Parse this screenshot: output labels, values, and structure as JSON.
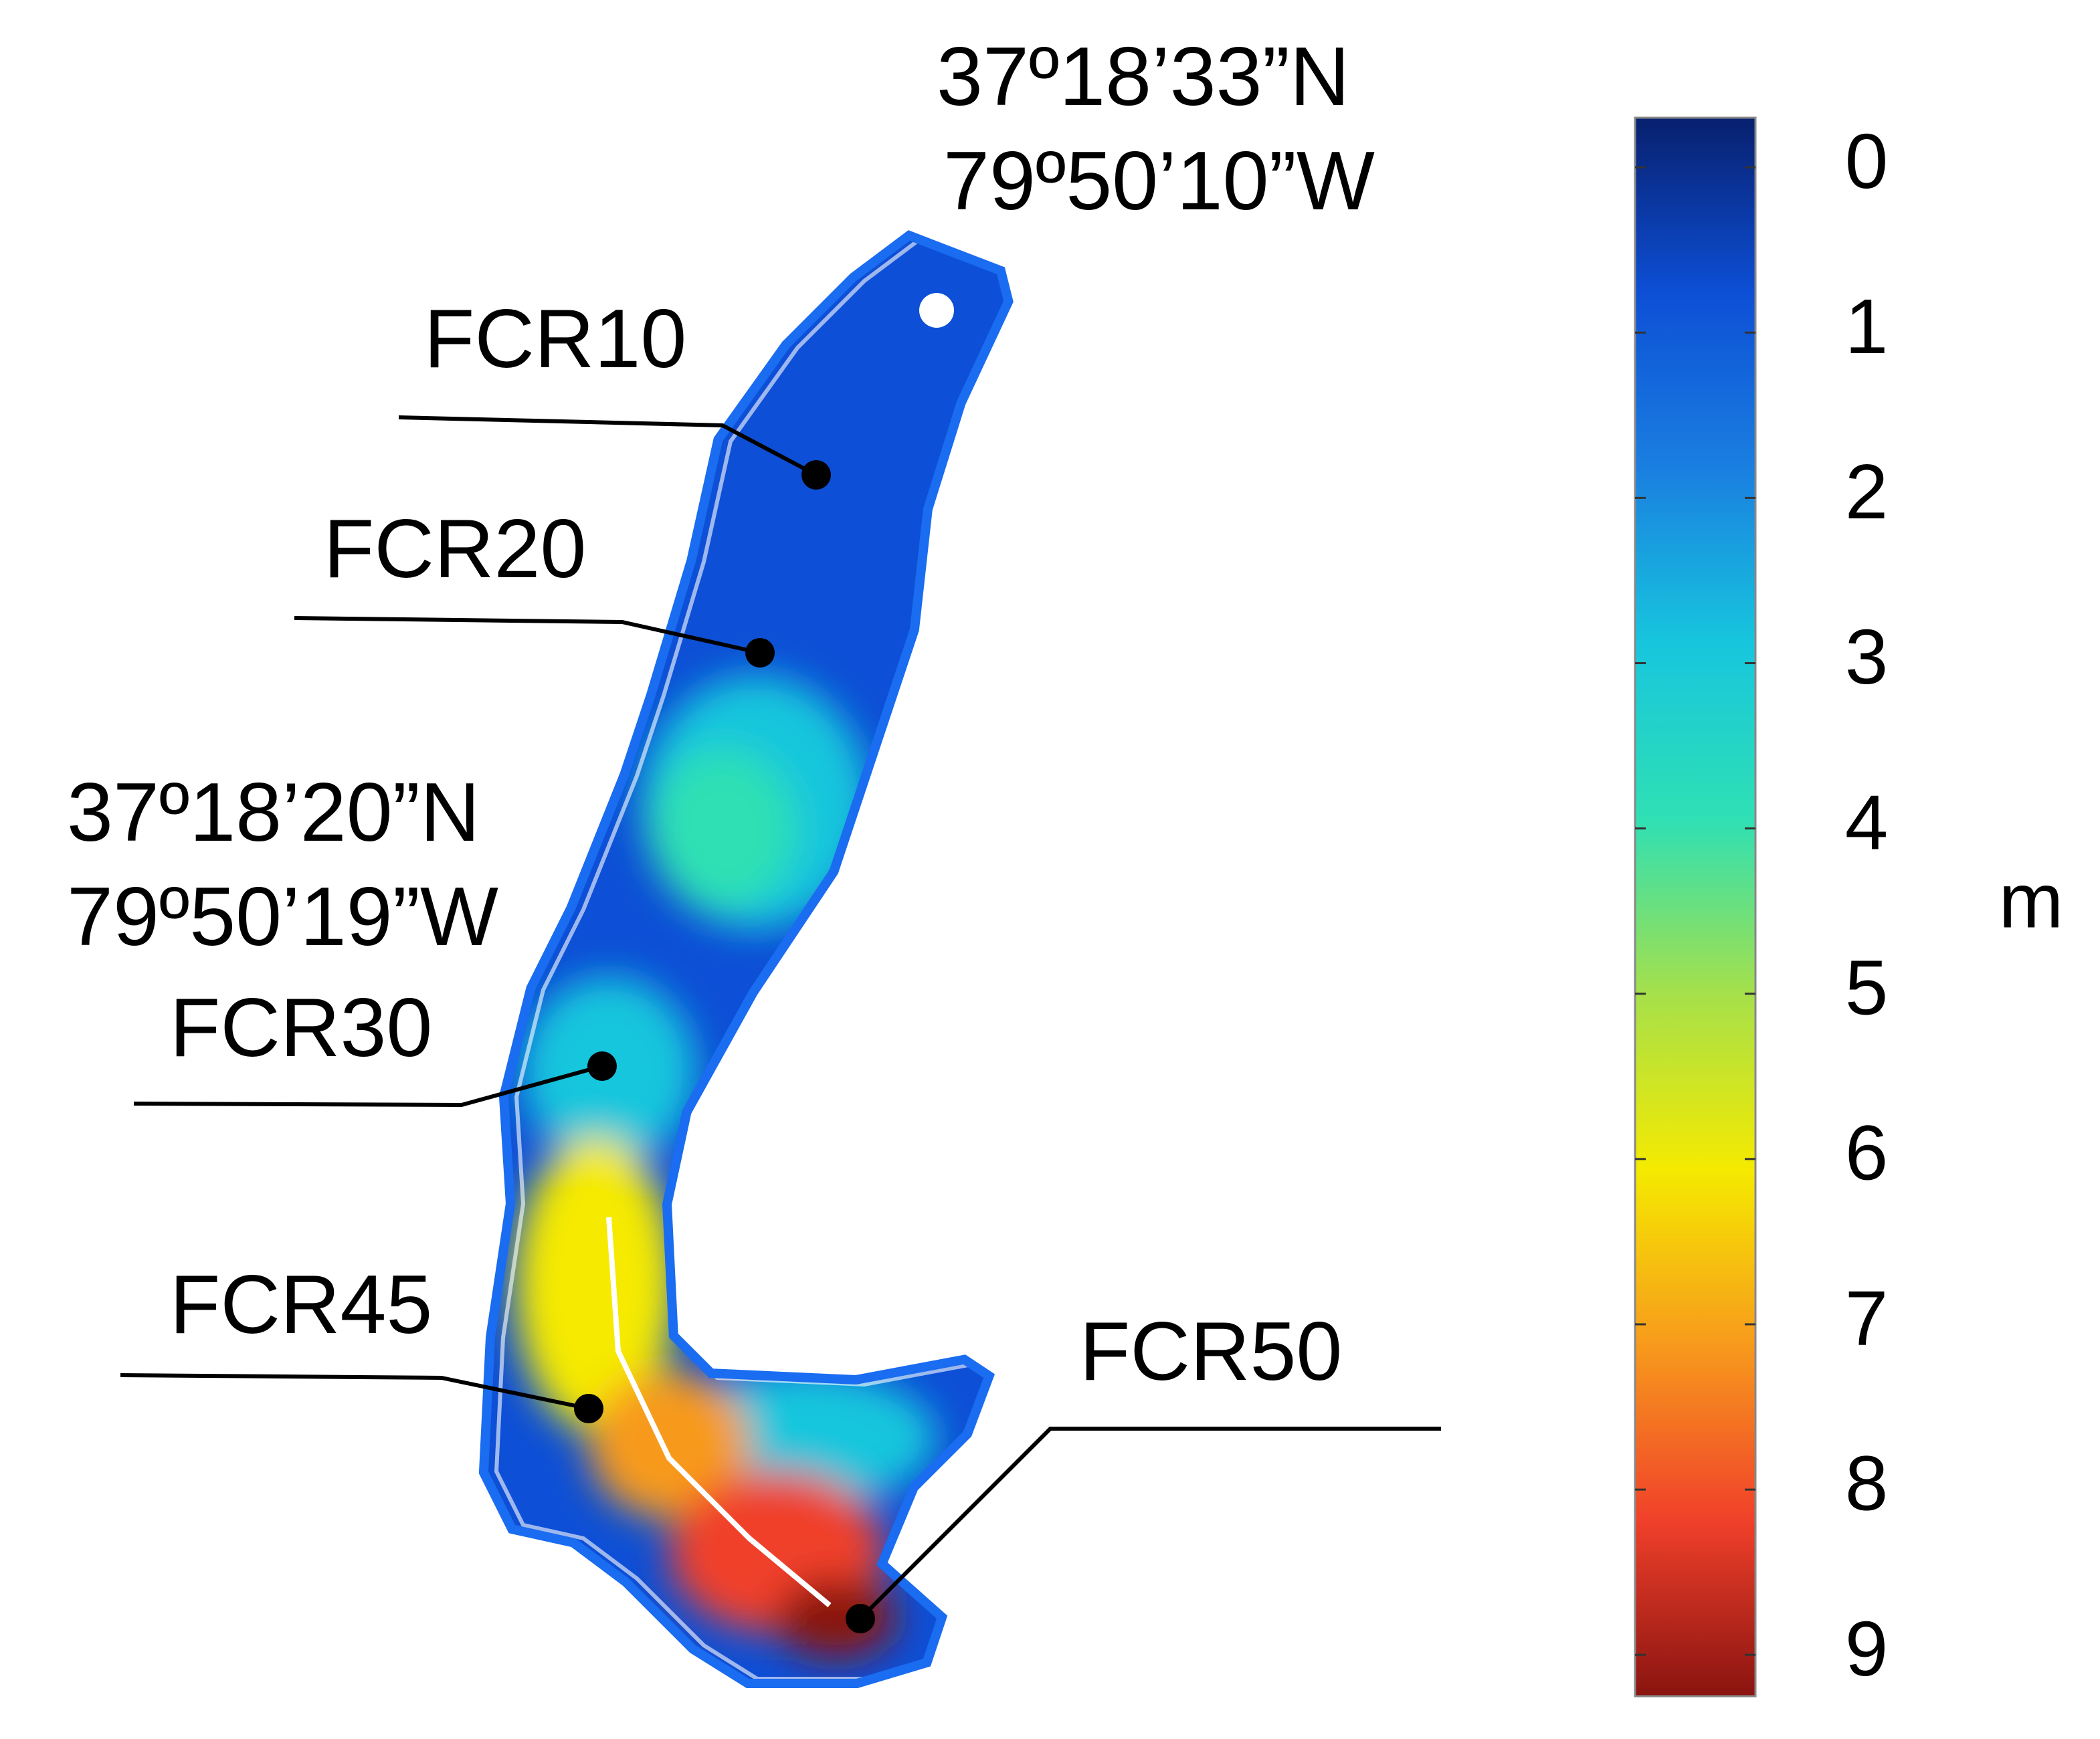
{
  "map": {
    "coordinates": [
      {
        "lat": "37º18’33”N",
        "lon": "79º50’10”W"
      },
      {
        "lat": "37º18’20”N",
        "lon": "79º50’19”W"
      }
    ],
    "sites": [
      {
        "label": "FCR10"
      },
      {
        "label": "FCR20"
      },
      {
        "label": "FCR30"
      },
      {
        "label": "FCR45"
      },
      {
        "label": "FCR50"
      }
    ],
    "colorbar": {
      "unit": "m",
      "lim": [
        -0.3,
        9.25
      ],
      "ticks": [
        0,
        1,
        2,
        3,
        4,
        5,
        6,
        7,
        8,
        9
      ],
      "colors": [
        "#08206e",
        "#0d4fd6",
        "#1a7fe0",
        "#17c6dd",
        "#2fe0b4",
        "#a6e04a",
        "#f5ea00",
        "#f79a1c",
        "#f0402a",
        "#8a1410"
      ]
    }
  }
}
